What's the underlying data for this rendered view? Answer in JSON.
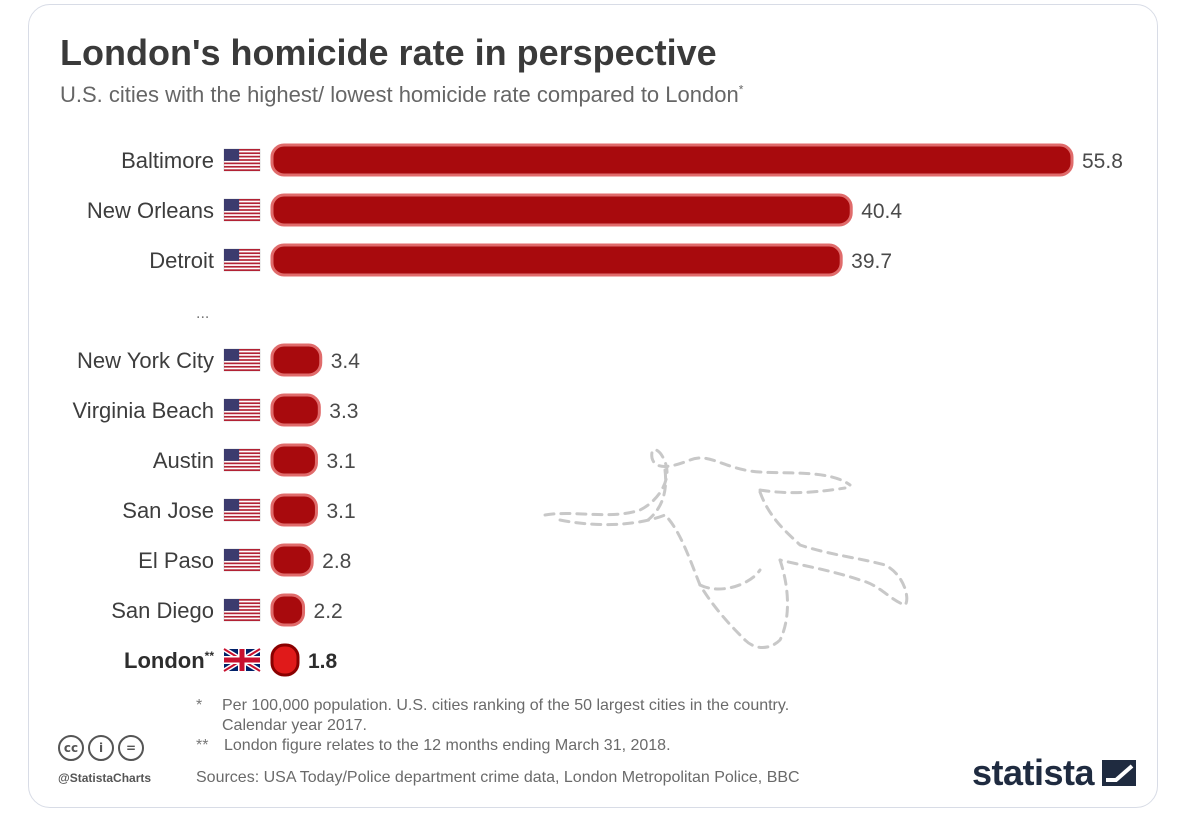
{
  "title": "London's homicide rate in perspective",
  "subtitle": "U.S. cities with the highest/ lowest homicide rate compared to London",
  "subtitle_mark": "*",
  "ellipsis": "...",
  "colors": {
    "bar": "#a80a0d",
    "bar_border": "#e06b6b",
    "london_bar": "#e01a1a",
    "london_border": "#8a0000",
    "outline": "#c6c6c6"
  },
  "chart_data": {
    "type": "bar",
    "orientation": "horizontal",
    "categories": [
      "Baltimore",
      "New Orleans",
      "Detroit",
      "New York City",
      "Virginia Beach",
      "Austin",
      "San Jose",
      "El Paso",
      "San Diego",
      "London"
    ],
    "values": [
      55.8,
      40.4,
      39.7,
      3.4,
      3.3,
      3.1,
      3.1,
      2.8,
      2.2,
      1.8
    ],
    "flags": [
      "us-flag-icon",
      "us-flag-icon",
      "us-flag-icon",
      "us-flag-icon",
      "us-flag-icon",
      "us-flag-icon",
      "us-flag-icon",
      "us-flag-icon",
      "us-flag-icon",
      "uk-flag-icon"
    ],
    "highlight": "London",
    "label_suffix": {
      "London": "**"
    },
    "gap_after_index": 2,
    "unit": "per 100,000 population",
    "grid": false,
    "legend": "none"
  },
  "footer": {
    "note1_mark": "*",
    "note1_line1": "Per 100,000 population. U.S. cities ranking of the 50 largest cities in the country.",
    "note1_line2": "Calendar year 2017.",
    "note2_mark": "**",
    "note2_text": "London figure relates to the 12 months ending March 31, 2018.",
    "sources": "Sources: USA Today/Police department crime data, London Metropolitan Police, BBC",
    "handle": "@StatistaCharts",
    "brand": "statista",
    "cc_icons": [
      "creative-commons-icon",
      "attribution-icon",
      "no-derivatives-icon"
    ],
    "cc_glyphs": [
      "cc",
      "i",
      "="
    ]
  }
}
